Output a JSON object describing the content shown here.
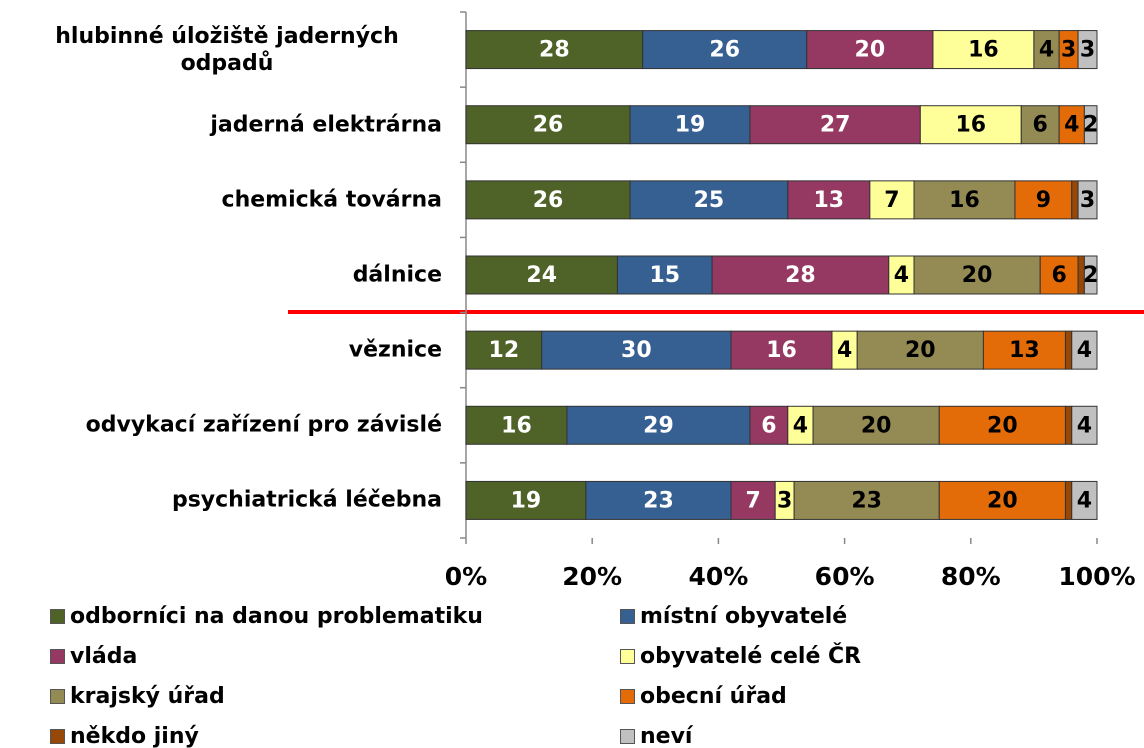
{
  "chart_data": {
    "type": "stacked_bar_horizontal",
    "categories": [
      "hlubinné úložiště jaderných odpadů",
      "jaderná elektrárna",
      "chemická továrna",
      "dálnice",
      "věznice",
      "odvykací zařízení pro závislé",
      "psychiatrická léčebna"
    ],
    "series": [
      {
        "name": "odborníci na danou problematiku",
        "color": "#4f6228",
        "label_color": "#ffffff",
        "data_labels": true,
        "values": [
          28,
          26,
          26,
          24,
          12,
          16,
          19
        ]
      },
      {
        "name": "místní obyvatelé",
        "color": "#366092",
        "label_color": "#ffffff",
        "data_labels": true,
        "values": [
          26,
          19,
          25,
          15,
          30,
          29,
          23
        ]
      },
      {
        "name": "vláda",
        "color": "#953862",
        "label_color": "#ffffff",
        "data_labels": true,
        "values": [
          20,
          27,
          13,
          28,
          16,
          6,
          7
        ]
      },
      {
        "name": "obyvatelé celé ČR",
        "color": "#ffff99",
        "label_color": "#000000",
        "data_labels": true,
        "values": [
          16,
          16,
          7,
          4,
          4,
          4,
          3
        ]
      },
      {
        "name": "krajský úřad",
        "color": "#948a54",
        "label_color": "#000000",
        "data_labels": true,
        "values": [
          4,
          6,
          16,
          20,
          20,
          20,
          23
        ]
      },
      {
        "name": "obecní úřad",
        "color": "#e36c09",
        "label_color": "#000000",
        "data_labels": true,
        "values": [
          3,
          4,
          9,
          6,
          13,
          20,
          20
        ]
      },
      {
        "name": "někdo jiný",
        "color": "#974806",
        "label_color": "#ffffff",
        "data_labels": false,
        "values": [
          0,
          0,
          1,
          1,
          1,
          1,
          1
        ]
      },
      {
        "name": "neví",
        "color": "#c0c0c0",
        "label_color": "#000000",
        "data_labels": true,
        "values": [
          3,
          2,
          3,
          2,
          4,
          4,
          4
        ]
      }
    ],
    "xlim": [
      0,
      100
    ],
    "xticks": [
      {
        "value": 0,
        "label": "0%"
      },
      {
        "value": 20,
        "label": "20%"
      },
      {
        "value": 40,
        "label": "40%"
      },
      {
        "value": 60,
        "label": "60%"
      },
      {
        "value": 80,
        "label": "80%"
      },
      {
        "value": 100,
        "label": "100%"
      }
    ],
    "legend": "bottom",
    "grid": false
  }
}
